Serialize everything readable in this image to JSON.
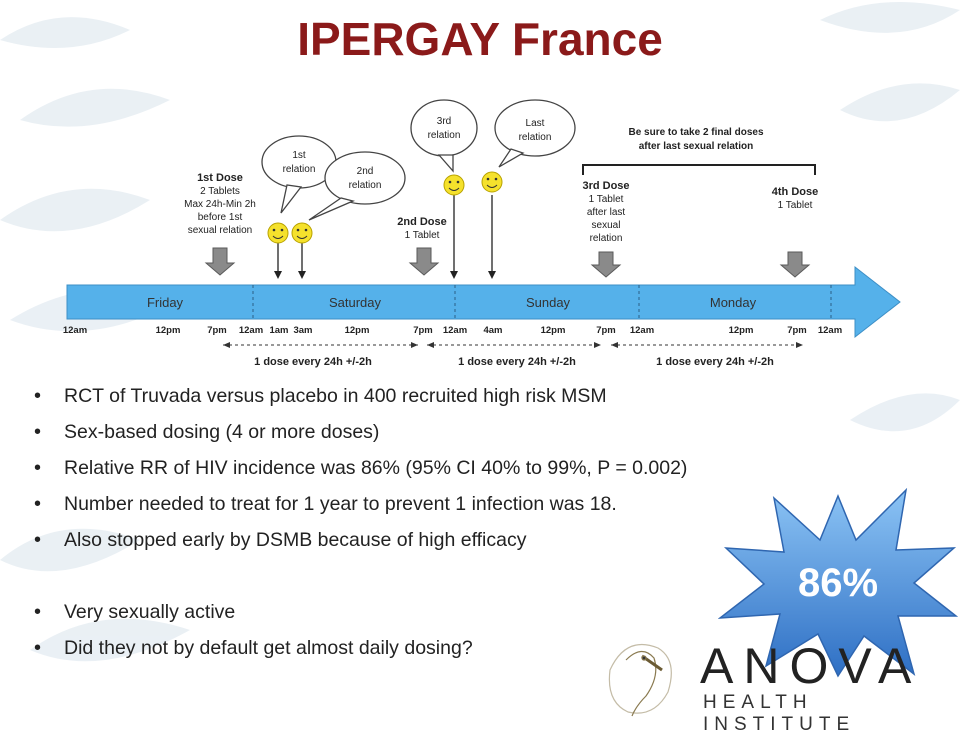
{
  "slide": {
    "title": "IPERGAY France"
  },
  "diagram": {
    "days": [
      "Friday",
      "Saturday",
      "Sunday",
      "Monday"
    ],
    "times": [
      "12am",
      "12pm",
      "7pm",
      "12am",
      "1am",
      "3am",
      "12pm",
      "7pm",
      "12am",
      "4am",
      "12pm",
      "7pm",
      "12am",
      "12pm",
      "7pm",
      "12am"
    ],
    "doses": [
      {
        "title": "1st Dose",
        "lines": [
          "2 Tablets",
          "Max 24h-Min 2h",
          "before 1st",
          "sexual relation"
        ]
      },
      {
        "title": "2nd Dose",
        "lines": [
          "1 Tablet"
        ]
      },
      {
        "title": "3rd Dose",
        "lines": [
          "1 Tablet",
          "after last",
          "sexual",
          "relation"
        ]
      },
      {
        "title": "4th Dose",
        "lines": [
          "1 Tablet"
        ]
      }
    ],
    "relations": [
      {
        "lines": [
          "1st",
          "relation"
        ]
      },
      {
        "lines": [
          "2nd",
          "relation"
        ]
      },
      {
        "lines": [
          "3rd",
          "relation"
        ]
      },
      {
        "lines": [
          "Last",
          "relation"
        ]
      }
    ],
    "final_note": [
      "Be sure to take 2 final doses",
      "after last sexual relation"
    ],
    "interval_label": "1 dose every 24h +/-2h"
  },
  "bullets": [
    "RCT of Truvada versus placebo in 400 recruited high risk MSM",
    "Sex-based dosing (4 or more doses)",
    "Relative RR of HIV incidence was 86% (95% CI 40% to 99%, P = 0.002)",
    "Number needed to treat for 1 year to prevent 1 infection was 18.",
    "Also stopped early by DSMB because of high efficacy",
    "Very sexually active",
    "Did they not by default get almost daily dosing?"
  ],
  "callout": {
    "value": "86%",
    "color": "#3b82d6"
  },
  "logo": {
    "name": "ANOVA",
    "subtitle": "HEALTH INSTITUTE"
  },
  "colors": {
    "title": "#8b1a1a",
    "timeline_bar": "#55b1ea",
    "smiley": "#f5e12c"
  }
}
